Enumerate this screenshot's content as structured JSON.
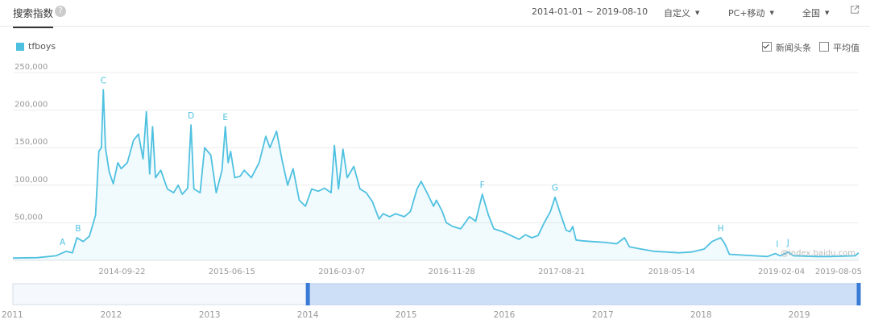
{
  "header": {
    "title": "搜索指数",
    "help_icon": "?",
    "date_range": "2014-01-01 ~ 2019-08-10",
    "custom_label": "自定义",
    "device_label": "PC+移动",
    "region_label": "全国",
    "share_icon": "external-link-icon"
  },
  "legend": {
    "series_label": "tfboys",
    "color": "#4fc1e0"
  },
  "options": {
    "news_label": "新闻头条",
    "news_checked": true,
    "avg_label": "平均值",
    "avg_checked": false
  },
  "watermark": "@index.baidu.com",
  "chart_data": {
    "type": "area",
    "x_start": "2014-01-01",
    "x_end": "2019-08-10",
    "ylim": [
      0,
      250000
    ],
    "yticks": [
      "250,000",
      "200,000",
      "150,000",
      "100,000",
      "50,000"
    ],
    "xticks": [
      "2014-09-22",
      "2015-06-15",
      "2016-03-07",
      "2016-11-28",
      "2017-08-21",
      "2018-05-14",
      "2019-02-04",
      "2019-08-05"
    ],
    "grid": true,
    "series": [
      {
        "name": "tfboys",
        "color": "#4fc1e0",
        "points": [
          [
            "2014-01-01",
            3000
          ],
          [
            "2014-03-01",
            3500
          ],
          [
            "2014-04-15",
            6000
          ],
          [
            "2014-05-10",
            12000
          ],
          [
            "2014-05-25",
            10000
          ],
          [
            "2014-06-05",
            30000
          ],
          [
            "2014-06-20",
            25000
          ],
          [
            "2014-07-05",
            32000
          ],
          [
            "2014-07-20",
            60000
          ],
          [
            "2014-07-28",
            145000
          ],
          [
            "2014-08-03",
            150000
          ],
          [
            "2014-08-08",
            227000
          ],
          [
            "2014-08-13",
            150000
          ],
          [
            "2014-08-22",
            118000
          ],
          [
            "2014-09-01",
            102000
          ],
          [
            "2014-09-12",
            130000
          ],
          [
            "2014-09-20",
            122000
          ],
          [
            "2014-10-05",
            130000
          ],
          [
            "2014-10-20",
            160000
          ],
          [
            "2014-11-01",
            168000
          ],
          [
            "2014-11-12",
            135000
          ],
          [
            "2014-11-20",
            198000
          ],
          [
            "2014-11-28",
            115000
          ],
          [
            "2014-12-05",
            178000
          ],
          [
            "2014-12-12",
            110000
          ],
          [
            "2014-12-25",
            120000
          ],
          [
            "2015-01-10",
            95000
          ],
          [
            "2015-01-25",
            90000
          ],
          [
            "2015-02-05",
            100000
          ],
          [
            "2015-02-15",
            88000
          ],
          [
            "2015-02-28",
            96000
          ],
          [
            "2015-03-08",
            180000
          ],
          [
            "2015-03-15",
            95000
          ],
          [
            "2015-03-30",
            90000
          ],
          [
            "2015-04-10",
            150000
          ],
          [
            "2015-04-25",
            140000
          ],
          [
            "2015-05-08",
            90000
          ],
          [
            "2015-05-22",
            120000
          ],
          [
            "2015-05-30",
            178000
          ],
          [
            "2015-06-06",
            130000
          ],
          [
            "2015-06-12",
            145000
          ],
          [
            "2015-06-22",
            110000
          ],
          [
            "2015-07-05",
            112000
          ],
          [
            "2015-07-15",
            120000
          ],
          [
            "2015-08-01",
            110000
          ],
          [
            "2015-08-20",
            130000
          ],
          [
            "2015-09-05",
            165000
          ],
          [
            "2015-09-15",
            150000
          ],
          [
            "2015-10-01",
            172000
          ],
          [
            "2015-10-15",
            132000
          ],
          [
            "2015-10-28",
            100000
          ],
          [
            "2015-11-10",
            122000
          ],
          [
            "2015-11-25",
            80000
          ],
          [
            "2015-12-10",
            72000
          ],
          [
            "2015-12-25",
            95000
          ],
          [
            "2016-01-10",
            92000
          ],
          [
            "2016-01-25",
            96000
          ],
          [
            "2016-02-10",
            90000
          ],
          [
            "2016-02-18",
            153000
          ],
          [
            "2016-02-28",
            95000
          ],
          [
            "2016-03-10",
            148000
          ],
          [
            "2016-03-20",
            110000
          ],
          [
            "2016-04-05",
            125000
          ],
          [
            "2016-04-20",
            95000
          ],
          [
            "2016-05-05",
            90000
          ],
          [
            "2016-05-20",
            78000
          ],
          [
            "2016-06-05",
            55000
          ],
          [
            "2016-06-15",
            62000
          ],
          [
            "2016-07-01",
            58000
          ],
          [
            "2016-07-15",
            62000
          ],
          [
            "2016-08-05",
            58000
          ],
          [
            "2016-08-20",
            65000
          ],
          [
            "2016-09-05",
            95000
          ],
          [
            "2016-09-15",
            105000
          ],
          [
            "2016-10-01",
            88000
          ],
          [
            "2016-10-15",
            72000
          ],
          [
            "2016-10-22",
            80000
          ],
          [
            "2016-11-05",
            65000
          ],
          [
            "2016-11-15",
            50000
          ],
          [
            "2016-12-01",
            45000
          ],
          [
            "2016-12-20",
            42000
          ],
          [
            "2017-01-10",
            58000
          ],
          [
            "2017-01-25",
            52000
          ],
          [
            "2017-02-10",
            88000
          ],
          [
            "2017-02-25",
            60000
          ],
          [
            "2017-03-10",
            42000
          ],
          [
            "2017-04-01",
            38000
          ],
          [
            "2017-04-20",
            33000
          ],
          [
            "2017-05-10",
            28000
          ],
          [
            "2017-05-25",
            34000
          ],
          [
            "2017-06-10",
            30000
          ],
          [
            "2017-06-25",
            33000
          ],
          [
            "2017-07-10",
            50000
          ],
          [
            "2017-07-25",
            65000
          ],
          [
            "2017-08-05",
            84000
          ],
          [
            "2017-08-18",
            62000
          ],
          [
            "2017-09-01",
            40000
          ],
          [
            "2017-09-10",
            38000
          ],
          [
            "2017-09-17",
            45000
          ],
          [
            "2017-09-25",
            27000
          ],
          [
            "2017-10-10",
            26000
          ],
          [
            "2017-11-01",
            25000
          ],
          [
            "2017-12-01",
            24000
          ],
          [
            "2018-01-01",
            22000
          ],
          [
            "2018-01-20",
            30000
          ],
          [
            "2018-02-01",
            18000
          ],
          [
            "2018-03-01",
            15000
          ],
          [
            "2018-04-01",
            12000
          ],
          [
            "2018-05-01",
            11000
          ],
          [
            "2018-06-01",
            10000
          ],
          [
            "2018-07-01",
            11000
          ],
          [
            "2018-08-01",
            15000
          ],
          [
            "2018-08-20",
            25000
          ],
          [
            "2018-09-01",
            28000
          ],
          [
            "2018-09-10",
            30000
          ],
          [
            "2018-09-20",
            22000
          ],
          [
            "2018-10-01",
            8000
          ],
          [
            "2018-11-01",
            7000
          ],
          [
            "2018-12-01",
            6000
          ],
          [
            "2019-01-01",
            5000
          ],
          [
            "2019-01-20",
            9000
          ],
          [
            "2019-02-01",
            6000
          ],
          [
            "2019-02-20",
            11000
          ],
          [
            "2019-03-05",
            6000
          ],
          [
            "2019-04-01",
            5500
          ],
          [
            "2019-05-01",
            5000
          ],
          [
            "2019-06-01",
            5000
          ],
          [
            "2019-07-01",
            5500
          ],
          [
            "2019-08-01",
            6000
          ],
          [
            "2019-08-10",
            10000
          ]
        ]
      }
    ],
    "annotations": [
      {
        "label": "A",
        "date": "2014-05-01",
        "value": 12000
      },
      {
        "label": "B",
        "date": "2014-06-08",
        "value": 30000
      },
      {
        "label": "C",
        "date": "2014-08-08",
        "value": 227000
      },
      {
        "label": "D",
        "date": "2015-03-08",
        "value": 180000
      },
      {
        "label": "E",
        "date": "2015-05-30",
        "value": 178000
      },
      {
        "label": "F",
        "date": "2017-02-10",
        "value": 88000
      },
      {
        "label": "G",
        "date": "2017-08-05",
        "value": 84000
      },
      {
        "label": "H",
        "date": "2018-09-10",
        "value": 30000
      },
      {
        "label": "I",
        "date": "2019-01-25",
        "value": 9000
      },
      {
        "label": "J",
        "date": "2019-02-20",
        "value": 11000
      }
    ]
  },
  "navigator": {
    "years": [
      "2011",
      "2012",
      "2013",
      "2014",
      "2015",
      "2016",
      "2017",
      "2018",
      "2019"
    ],
    "selected_from": "2014-01-01",
    "selected_to": "2019-08-10"
  }
}
